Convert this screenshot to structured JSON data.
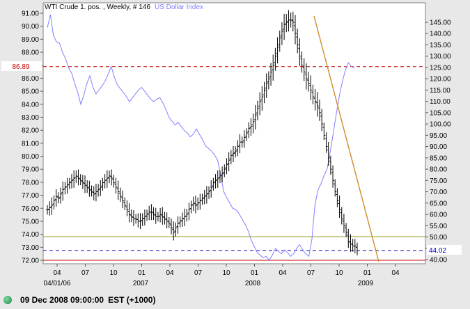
{
  "chart_data": {
    "type": "ohlc",
    "title": {
      "main": "WTI Crude 1. pos. , Weekly, # 146",
      "overlay": "US Dollar Index",
      "main_color": "#000000",
      "overlay_color": "#8080ff"
    },
    "x_axis": {
      "ticks": [
        "04",
        "07",
        "10",
        "01",
        "04",
        "07",
        "10",
        "01",
        "04",
        "07",
        "10",
        "01",
        "04"
      ],
      "year_labels": [
        "04/01/06",
        "2007",
        "2008",
        "2009"
      ]
    },
    "left_axis": {
      "range": [
        71.5,
        91.5
      ],
      "ticks": [
        "72.00",
        "73.00",
        "74.00",
        "75.00",
        "76.00",
        "77.00",
        "78.00",
        "79.00",
        "80.00",
        "81.00",
        "82.00",
        "83.00",
        "84.00",
        "85.00",
        "86.00",
        "87.00",
        "88.00",
        "89.00",
        "90.00",
        "91.00"
      ],
      "marker": "86.89",
      "marker_color": "#c00000"
    },
    "right_axis": {
      "range": [
        39,
        149
      ],
      "ticks": [
        "40.00",
        "45.00",
        "50.00",
        "55.00",
        "60.00",
        "65.00",
        "70.00",
        "75.00",
        "80.00",
        "85.00",
        "90.00",
        "95.00",
        "100.00",
        "105.00",
        "110.00",
        "115.00",
        "120.00",
        "125.00",
        "130.00",
        "135.00",
        "140.00",
        "145.00"
      ],
      "marker": "44.02",
      "marker_color": "#0000cc"
    },
    "crude_weekly_close": [
      62,
      63,
      64,
      66,
      68,
      67,
      69,
      71,
      72,
      73,
      74,
      75,
      76,
      77,
      76,
      75,
      74,
      73,
      72,
      71,
      70,
      69,
      70,
      71,
      72,
      74,
      75,
      76,
      77,
      76,
      74,
      72,
      70,
      68,
      66,
      64,
      62,
      60,
      59,
      58,
      58,
      57,
      57,
      58,
      59,
      60,
      61,
      61,
      60,
      59,
      59,
      60,
      59,
      58,
      57,
      56,
      54,
      52,
      54,
      56,
      57,
      58,
      59,
      60,
      62,
      64,
      65,
      64,
      65,
      66,
      67,
      68,
      69,
      70,
      72,
      74,
      75,
      76,
      77,
      78,
      80,
      82,
      84,
      86,
      87,
      88,
      90,
      92,
      92,
      94,
      96,
      98,
      99,
      101,
      104,
      107,
      110,
      112,
      115,
      118,
      120,
      123,
      126,
      130,
      134,
      138,
      141,
      144,
      145,
      146,
      146,
      145,
      140,
      135,
      130,
      126,
      123,
      120,
      118,
      115,
      112,
      110,
      108,
      105,
      100,
      95,
      90,
      85,
      80,
      75,
      70,
      66,
      62,
      58,
      55,
      52,
      48,
      47,
      46,
      46,
      44
    ],
    "usdx_weekly": [
      89.9,
      90.9,
      89.3,
      88.8,
      88.7,
      88.0,
      87.5,
      86.8,
      86.4,
      85.6,
      84.9,
      84.0,
      84.7,
      85.6,
      86.2,
      85.3,
      84.8,
      85.1,
      85.4,
      85.8,
      86.3,
      86.9,
      86.1,
      85.5,
      85.2,
      84.9,
      84.6,
      84.2,
      84.5,
      84.8,
      85.1,
      85.3,
      85.0,
      84.7,
      84.4,
      84.2,
      84.4,
      84.5,
      84.1,
      83.6,
      83.0,
      82.7,
      82.4,
      82.6,
      82.3,
      82.0,
      81.8,
      81.5,
      81.7,
      82.1,
      81.7,
      81.3,
      80.8,
      80.6,
      80.4,
      80.1,
      79.7,
      78.6,
      77.3,
      76.8,
      76.4,
      76.0,
      75.9,
      75.6,
      75.2,
      74.8,
      74.3,
      73.6,
      73.1,
      72.6,
      72.4,
      72.2,
      72.3,
      72.0,
      72.4,
      72.9,
      72.7,
      72.5,
      72.8,
      72.6,
      72.3,
      72.5,
      72.9,
      73.2,
      72.8,
      72.5,
      72.3,
      73.6,
      76.2,
      77.4,
      77.9,
      78.5,
      79.0,
      80.3,
      81.7,
      83.2,
      84.6,
      85.7,
      86.6,
      87.2,
      86.9,
      86.8
    ]
  },
  "status": {
    "datetime": "09 Dec 2008 09:00:00",
    "timezone": "EST (+1000)"
  }
}
